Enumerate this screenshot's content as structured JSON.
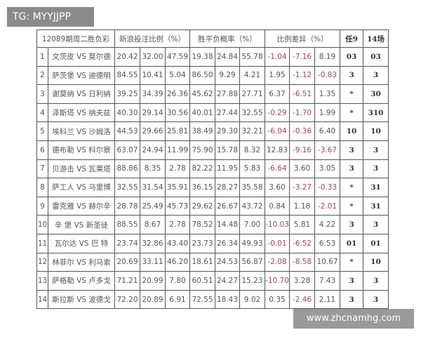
{
  "overlay_tag": "TG: MYYJJPP",
  "watermark": "www.zhcnamhg.com",
  "header": {
    "title": "12089期周二胜负彩",
    "bet_ratio": "新浪投注比例（%）",
    "probability": "胜平负概率（%）",
    "difference": "比例差异（%）",
    "r9": "任9",
    "s14": "14场"
  },
  "rows": [
    [
      "1",
      "文茨皮 VS 莫尔德",
      "20.42",
      "32.00",
      "47.59",
      "19.38",
      "24.84",
      "55.78",
      "-1.04",
      "-7.16",
      "8.19",
      "03",
      "03"
    ],
    [
      "2",
      "萨茨堡 VS 迪德明",
      "84.55",
      "10.41",
      "5.04",
      "86.50",
      "9.29",
      "4.21",
      "1.95",
      "-1.12",
      "-0.83",
      "3",
      "3"
    ],
    [
      "3",
      "谢莫纳 VS 日利纳",
      "39.25",
      "34.39",
      "26.36",
      "45.62",
      "27.88",
      "27.71",
      "6.37",
      "-6.51",
      "1.35",
      "*",
      "30"
    ],
    [
      "4",
      "泽斯塔 VS 纳夫兹",
      "40.30",
      "29.14",
      "30.56",
      "40.01",
      "27.44",
      "32.55",
      "-0.29",
      "-1.70",
      "1.99",
      "*",
      "310"
    ],
    [
      "5",
      "埃科兰 VS 沙姆洛",
      "44.53",
      "29.66",
      "25.81",
      "38.49",
      "29.30",
      "32.21",
      "-6.04",
      "-0.36",
      "6.40",
      "10",
      "10"
    ],
    [
      "6",
      "德布勒 VS 科尔察",
      "63.07",
      "24.94",
      "11.99",
      "75.90",
      "15.78",
      "8.32",
      "12.83",
      "-9.16",
      "-3.67",
      "3",
      "3"
    ],
    [
      "7",
      "贝游击 VS 瓦莱塔",
      "88.86",
      "8.35",
      "2.78",
      "82.22",
      "11.95",
      "5.83",
      "-6.64",
      "3.60",
      "3.05",
      "3",
      "3"
    ],
    [
      "8",
      "萨工人 VS 马里博",
      "32.55",
      "31.54",
      "35.91",
      "36.15",
      "28.27",
      "35.58",
      "3.60",
      "-3.27",
      "-0.33",
      "*",
      "31"
    ],
    [
      "9",
      "雷克雅 VS 赫尔辛",
      "28.78",
      "25.49",
      "45.73",
      "29.62",
      "26.67",
      "43.72",
      "0.84",
      "1.18",
      "-2.01",
      "*",
      "31"
    ],
    [
      "10",
      "辛 堡 VS 新圣徒",
      "88.55",
      "8.67",
      "2.78",
      "78.52",
      "14.48",
      "7.00",
      "-10.03",
      "5.81",
      "4.22",
      "3",
      "3"
    ],
    [
      "11",
      "瓦尔达 VS 巴 特",
      "23.74",
      "32.86",
      "43.40",
      "23.73",
      "26.34",
      "49.93",
      "-0.01",
      "-6.52",
      "6.53",
      "01",
      "01"
    ],
    [
      "12",
      "林菲尔 VS 利马索",
      "20.69",
      "33.11",
      "46.20",
      "18.61",
      "24.53",
      "56.87",
      "-2.08",
      "-8.58",
      "10.67",
      "*",
      "10"
    ],
    [
      "13",
      "萨格勒 VS 卢多戈",
      "71.21",
      "20.99",
      "7.80",
      "60.51",
      "24.27",
      "15.23",
      "-10.70",
      "3.28",
      "7.43",
      "3",
      "3"
    ],
    [
      "14",
      "斯拉斯 VS 波德戈",
      "72.20",
      "20.89",
      "6.91",
      "72.55",
      "18.43",
      "9.02",
      "0.35",
      "-2.46",
      "2.11",
      "3",
      "3"
    ]
  ]
}
